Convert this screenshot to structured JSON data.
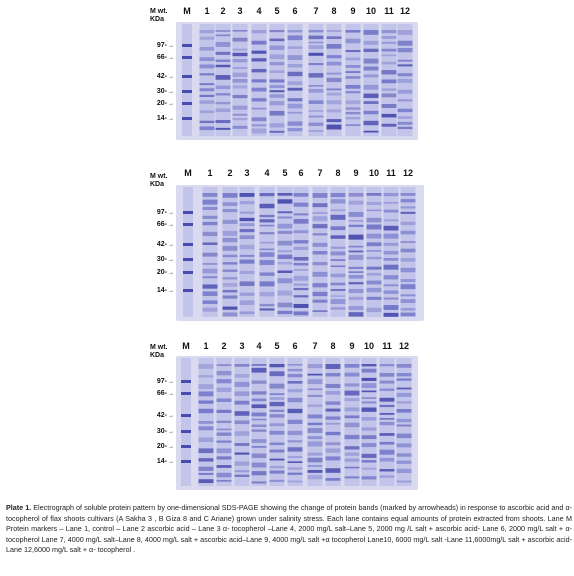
{
  "panels": [
    {
      "mw_label": [
        "M wt.",
        "KDa"
      ],
      "lanes": [
        "M",
        "1",
        "2",
        "3",
        "4",
        "5",
        "6",
        "7",
        "8",
        "9",
        "10",
        "11",
        "12"
      ],
      "markers": [
        "97-",
        "66-",
        "42-",
        "30-",
        "20-",
        "14-"
      ]
    },
    {
      "mw_label": [
        "M wt.",
        "KDa"
      ],
      "lanes": [
        "M",
        "1",
        "2",
        "3",
        "4",
        "5",
        "6",
        "7",
        "8",
        "9",
        "10",
        "11",
        "12"
      ],
      "markers": [
        "97-",
        "66-",
        "42-",
        "30-",
        "20-",
        "14-"
      ]
    },
    {
      "mw_label": [
        "M wt.",
        "KDa"
      ],
      "lanes": [
        "M",
        "1",
        "2",
        "3",
        "4",
        "5",
        "6",
        "7",
        "8",
        "9",
        "10",
        "11",
        "12"
      ],
      "markers": [
        "97-",
        "66-",
        "42-",
        "30-",
        "20-",
        "14-"
      ]
    }
  ],
  "caption": {
    "label": "Plate 1.",
    "text": " Electrograph of soluble protein pattern by one-dimensional SDS-PAGE showing the change of protein bands (marked by arrowheads) in response to ascorbic acid and α- tocopherol of flax shoots cultivars (A Sakha 3 , B Giza 8 and C Ariane) grown under salinity stress. Each lane contains equal amounts of protein extracted from shoots. Lane M Protein markers – Lane 1, control – Lane 2 ascorbic acid – Lane 3 α- tocopherol –Lane 4, 2000 mg/L salt–Lane 5, 2000 mg /L salt + ascorbic acid- Lane 6, 2000 mg/L salt + α-tocopherol Lane 7, 4000 mg/L salt–Lane 8, 4000 mg/L salt + ascorbic acid–Lane 9, 4000 mg/L salt +α tocopherol Lane10, 6000 mg/L salt -Lane 11,6000mg/L salt + ascorbic acid-Lane 12,6000 mg/L salt + α- tocopherol ."
  },
  "colors": {
    "gel_bg": "#d9daf0",
    "band_dark": "#3c3fa8",
    "band_mid": "#6b6fc6",
    "band_light": "#a6a8df"
  }
}
